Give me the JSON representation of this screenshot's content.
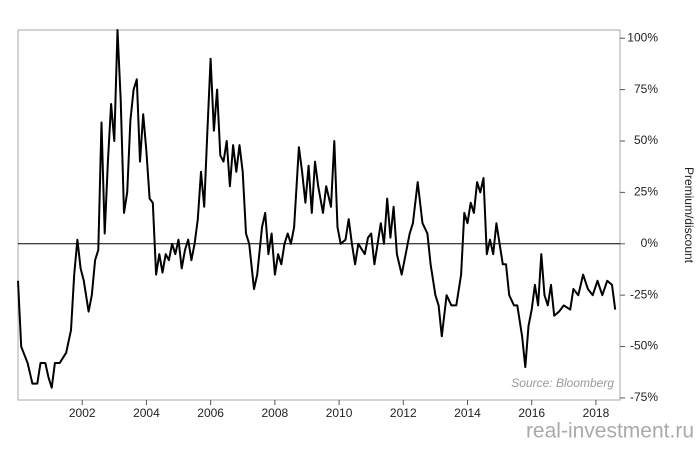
{
  "chart_data": {
    "type": "line",
    "y_axis_label": "Premium/discount",
    "annotation": "Source: Bloomberg",
    "watermark": "real-investment.ru",
    "xlim": [
      2000,
      2018.75
    ],
    "xticks": [
      2002,
      2004,
      2006,
      2008,
      2010,
      2012,
      2014,
      2016,
      2018
    ],
    "ylim": [
      -76,
      104
    ],
    "yticks": [
      {
        "value": -75,
        "label": "-75%"
      },
      {
        "value": -50,
        "label": "-50%"
      },
      {
        "value": -25,
        "label": "-25%"
      },
      {
        "value": 0,
        "label": "0%"
      },
      {
        "value": 25,
        "label": "25%"
      },
      {
        "value": 50,
        "label": "50%"
      },
      {
        "value": 75,
        "label": "75%"
      },
      {
        "value": 100,
        "label": "100%"
      }
    ],
    "zero_line": 0,
    "x": [
      2000.0,
      2000.1,
      2000.3,
      2000.45,
      2000.6,
      2000.7,
      2000.85,
      2000.95,
      2001.05,
      2001.15,
      2001.3,
      2001.5,
      2001.65,
      2001.75,
      2001.85,
      2001.95,
      2002.05,
      2002.2,
      2002.3,
      2002.4,
      2002.5,
      2002.6,
      2002.7,
      2002.8,
      2002.9,
      2003.0,
      2003.1,
      2003.2,
      2003.3,
      2003.4,
      2003.5,
      2003.6,
      2003.7,
      2003.8,
      2003.9,
      2004.0,
      2004.1,
      2004.2,
      2004.3,
      2004.4,
      2004.5,
      2004.6,
      2004.7,
      2004.8,
      2004.9,
      2005.0,
      2005.1,
      2005.2,
      2005.3,
      2005.4,
      2005.5,
      2005.6,
      2005.7,
      2005.8,
      2005.9,
      2006.0,
      2006.1,
      2006.2,
      2006.3,
      2006.4,
      2006.5,
      2006.6,
      2006.7,
      2006.8,
      2006.9,
      2007.0,
      2007.1,
      2007.2,
      2007.35,
      2007.45,
      2007.6,
      2007.7,
      2007.8,
      2007.9,
      2008.0,
      2008.1,
      2008.2,
      2008.3,
      2008.4,
      2008.5,
      2008.6,
      2008.75,
      2008.85,
      2008.95,
      2009.05,
      2009.15,
      2009.25,
      2009.35,
      2009.5,
      2009.6,
      2009.75,
      2009.85,
      2009.95,
      2010.05,
      2010.2,
      2010.3,
      2010.4,
      2010.5,
      2010.6,
      2010.8,
      2010.9,
      2011.0,
      2011.1,
      2011.2,
      2011.3,
      2011.4,
      2011.5,
      2011.6,
      2011.7,
      2011.8,
      2011.95,
      2012.1,
      2012.2,
      2012.3,
      2012.45,
      2012.6,
      2012.75,
      2012.85,
      2013.0,
      2013.1,
      2013.2,
      2013.35,
      2013.5,
      2013.65,
      2013.8,
      2013.9,
      2014.0,
      2014.1,
      2014.2,
      2014.3,
      2014.4,
      2014.5,
      2014.6,
      2014.7,
      2014.8,
      2014.9,
      2015.0,
      2015.1,
      2015.2,
      2015.3,
      2015.45,
      2015.55,
      2015.7,
      2015.8,
      2015.9,
      2016.0,
      2016.1,
      2016.2,
      2016.3,
      2016.4,
      2016.5,
      2016.6,
      2016.7,
      2016.85,
      2017.0,
      2017.2,
      2017.3,
      2017.45,
      2017.6,
      2017.75,
      2017.9,
      2018.05,
      2018.2,
      2018.35,
      2018.5,
      2018.6
    ],
    "series": [
      {
        "name": "Premium/discount",
        "color": "#000000",
        "values": [
          -18,
          -50,
          -58,
          -68,
          -68,
          -58,
          -58,
          -65,
          -70,
          -58,
          -58,
          -53,
          -42,
          -15,
          2,
          -12,
          -18,
          -33,
          -25,
          -8,
          -3,
          59,
          5,
          40,
          68,
          50,
          104,
          70,
          15,
          25,
          60,
          75,
          80,
          40,
          63,
          45,
          22,
          20,
          -15,
          -5,
          -14,
          -5,
          -8,
          0,
          -5,
          2,
          -12,
          -3,
          2,
          -8,
          0,
          12,
          35,
          18,
          55,
          90,
          55,
          75,
          43,
          40,
          50,
          28,
          48,
          35,
          48,
          35,
          5,
          0,
          -22,
          -15,
          8,
          15,
          -5,
          5,
          -15,
          -5,
          -10,
          0,
          5,
          0,
          8,
          47,
          35,
          20,
          38,
          15,
          40,
          28,
          15,
          28,
          18,
          50,
          8,
          0,
          2,
          12,
          0,
          -10,
          0,
          -5,
          3,
          5,
          -10,
          0,
          10,
          0,
          22,
          3,
          18,
          -5,
          -15,
          -3,
          5,
          10,
          30,
          10,
          5,
          -10,
          -25,
          -30,
          -45,
          -25,
          -30,
          -30,
          -15,
          15,
          10,
          20,
          15,
          30,
          25,
          32,
          -5,
          2,
          -5,
          10,
          0,
          -10,
          -10,
          -25,
          -30,
          -30,
          -45,
          -60,
          -40,
          -32,
          -20,
          -30,
          -5,
          -25,
          -30,
          -20,
          -35,
          -33,
          -30,
          -32,
          -22,
          -25,
          -15,
          -22,
          -25,
          -18,
          -25,
          -18,
          -20,
          -32
        ]
      }
    ]
  }
}
